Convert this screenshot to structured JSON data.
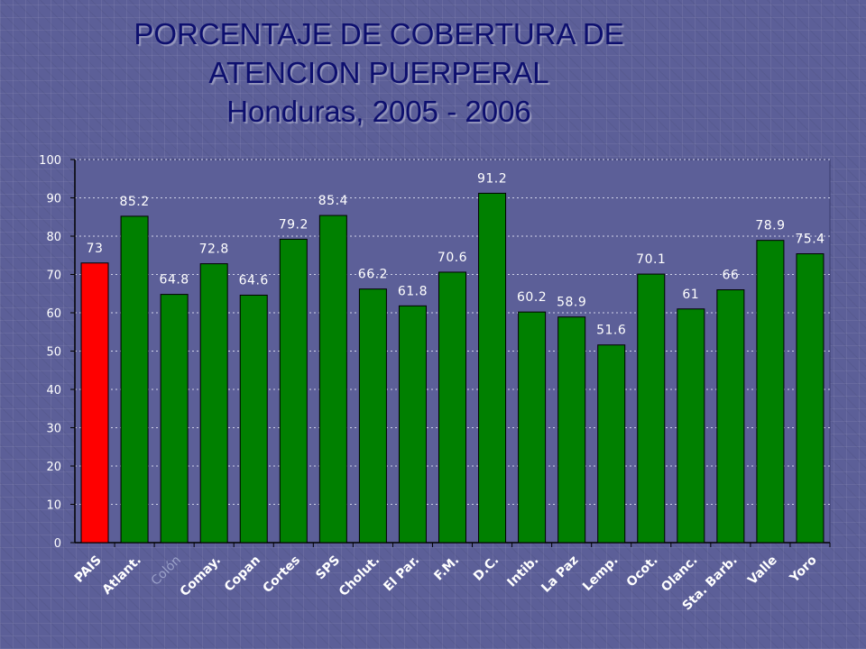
{
  "title": {
    "line1": "PORCENTAJE DE COBERTURA DE",
    "line2": "ATENCION PUERPERAL",
    "line3": "Honduras, 2005 - 2006"
  },
  "colors": {
    "highlight": "#ff0000",
    "bar": "#008000",
    "plot_background": "#5c5f98",
    "grid": "#d0d2e8",
    "text": "#ffffff",
    "title": "#0d0f6e"
  },
  "chart_data": {
    "type": "bar",
    "categories": [
      "PAIS",
      "Atlant.",
      "Colón",
      "Comay.",
      "Copan",
      "Cortes",
      "SPS",
      "Cholut.",
      "El Par.",
      "F.M.",
      "D.C.",
      "Intib.",
      "La Paz",
      "Lemp.",
      "Ocot.",
      "Olanc.",
      "Sta. Barb.",
      "Valle",
      "Yoro"
    ],
    "values": [
      73,
      85.2,
      64.8,
      72.8,
      64.6,
      79.2,
      85.4,
      66.2,
      61.8,
      70.6,
      91.2,
      60.2,
      58.9,
      51.6,
      70.1,
      61,
      66,
      78.9,
      75.4
    ],
    "data_labels": [
      "73",
      "85.2",
      "64.8",
      "72.8",
      "64.6",
      "79.2",
      "85.4",
      "66.2",
      "61.8",
      "70.6",
      "91.2",
      "60.2",
      "58.9",
      "51.6",
      "70.1",
      "61",
      "66",
      "78.9",
      "75.4"
    ],
    "highlight_index": 0,
    "dimmed_label_index": 2,
    "ylim": [
      0,
      100
    ],
    "yticks": [
      0,
      10,
      20,
      30,
      40,
      50,
      60,
      70,
      80,
      90,
      100
    ],
    "grid": true,
    "legend": "none"
  }
}
